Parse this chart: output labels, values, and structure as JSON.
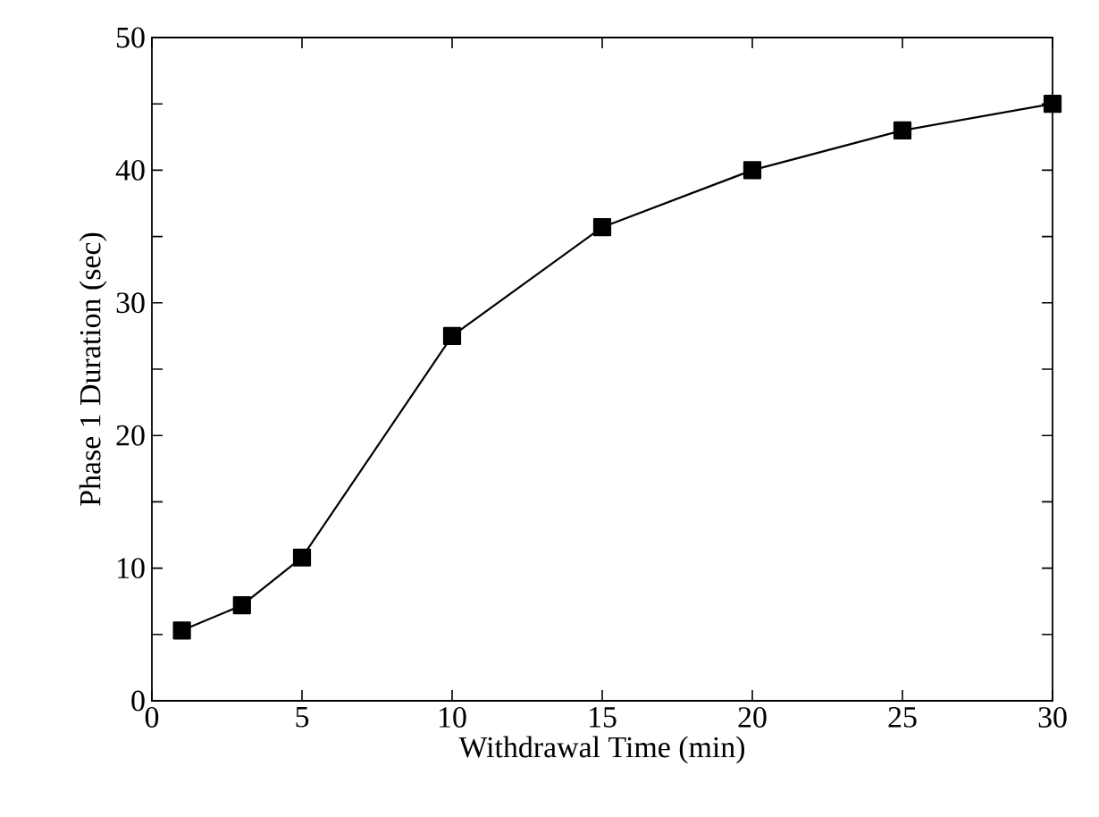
{
  "chart_data": {
    "type": "line",
    "xlabel": "Withdrawal Time (min)",
    "ylabel": "Phase 1 Duration (sec)",
    "x": [
      1,
      3,
      5,
      10,
      15,
      20,
      25,
      30
    ],
    "series": [
      {
        "color": "#000000",
        "values": [
          5.3,
          7.2,
          10.8,
          27.5,
          35.7,
          40,
          43,
          45
        ]
      }
    ],
    "xlim": [
      0,
      30
    ],
    "ylim": [
      0,
      50
    ],
    "xticks": [
      0,
      5,
      10,
      15,
      20,
      25,
      30
    ],
    "yticks": [
      0,
      {
        "value": 5,
        "label": null
      },
      10,
      {
        "value": 15,
        "label": null
      },
      20,
      {
        "value": 25,
        "label": null
      },
      30,
      {
        "value": 35,
        "label": null
      },
      40,
      {
        "value": 45,
        "label": null
      },
      50
    ],
    "marker": "square",
    "line_style": "solid"
  }
}
